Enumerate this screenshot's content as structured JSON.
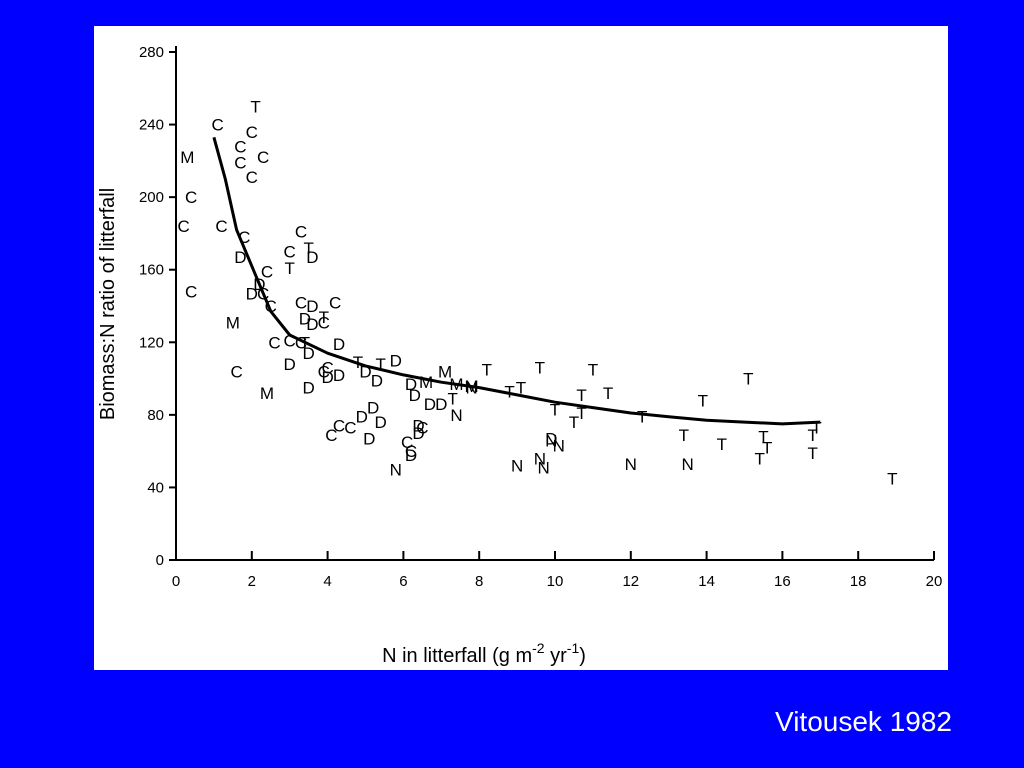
{
  "slide": {
    "background_color": "#0000FF",
    "citation": "Vitousek 1982"
  },
  "chart_data": {
    "type": "scatter",
    "xlabel": "N in litterfall (g m-2 yr-1)",
    "ylabel": "Biomass:N ratio of litterfall",
    "xlim": [
      0,
      20
    ],
    "ylim": [
      0,
      280
    ],
    "xticks": [
      0,
      2,
      4,
      6,
      8,
      10,
      12,
      14,
      16,
      18,
      20
    ],
    "yticks": [
      0,
      40,
      80,
      120,
      160,
      200,
      240,
      280
    ],
    "grid": false,
    "legend": "none",
    "series": [
      {
        "name": "C",
        "points": [
          [
            1.1,
            240
          ],
          [
            1.7,
            228
          ],
          [
            2.0,
            236
          ],
          [
            2.3,
            222
          ],
          [
            1.7,
            219
          ],
          [
            2.0,
            211
          ],
          [
            0.4,
            200
          ],
          [
            0.2,
            184
          ],
          [
            0.4,
            148
          ],
          [
            1.2,
            184
          ],
          [
            1.8,
            178
          ],
          [
            3.3,
            181
          ],
          [
            3.0,
            170
          ],
          [
            2.4,
            159
          ],
          [
            2.3,
            147
          ],
          [
            2.5,
            140
          ],
          [
            3.3,
            142
          ],
          [
            2.6,
            120
          ],
          [
            3.0,
            121
          ],
          [
            3.3,
            120
          ],
          [
            3.9,
            131
          ],
          [
            4.2,
            142
          ],
          [
            4.0,
            106
          ],
          [
            3.9,
            104
          ],
          [
            1.6,
            104
          ],
          [
            4.3,
            74
          ],
          [
            4.1,
            69
          ],
          [
            4.6,
            73
          ],
          [
            6.1,
            65
          ],
          [
            6.5,
            73
          ],
          [
            6.2,
            60
          ]
        ]
      },
      {
        "name": "M",
        "points": [
          [
            0.3,
            222
          ],
          [
            1.5,
            131
          ],
          [
            2.4,
            92
          ],
          [
            7.1,
            104
          ],
          [
            7.4,
            97
          ],
          [
            6.6,
            98
          ],
          [
            7.8,
            96
          ]
        ]
      },
      {
        "name": "D",
        "points": [
          [
            1.7,
            167
          ],
          [
            2.0,
            147
          ],
          [
            2.2,
            152
          ],
          [
            3.6,
            167
          ],
          [
            3.6,
            140
          ],
          [
            3.4,
            133
          ],
          [
            3.6,
            130
          ],
          [
            4.3,
            119
          ],
          [
            3.5,
            114
          ],
          [
            3.0,
            108
          ],
          [
            3.5,
            95
          ],
          [
            4.0,
            101
          ],
          [
            4.3,
            102
          ],
          [
            5.0,
            104
          ],
          [
            5.3,
            99
          ],
          [
            6.2,
            97
          ],
          [
            6.3,
            91
          ],
          [
            5.8,
            110
          ],
          [
            6.7,
            86
          ],
          [
            7.0,
            86
          ],
          [
            5.2,
            84
          ],
          [
            4.9,
            79
          ],
          [
            5.4,
            76
          ],
          [
            5.1,
            67
          ],
          [
            6.4,
            70
          ],
          [
            6.2,
            58
          ],
          [
            6.4,
            74
          ],
          [
            9.9,
            67
          ]
        ]
      },
      {
        "name": "T",
        "points": [
          [
            2.1,
            250
          ],
          [
            3.5,
            172
          ],
          [
            3.0,
            161
          ],
          [
            3.9,
            134
          ],
          [
            3.4,
            120
          ],
          [
            4.8,
            109
          ],
          [
            5.4,
            108
          ],
          [
            8.2,
            105
          ],
          [
            9.6,
            106
          ],
          [
            11.0,
            105
          ],
          [
            7.3,
            89
          ],
          [
            8.8,
            93
          ],
          [
            9.1,
            95
          ],
          [
            10.0,
            83
          ],
          [
            10.7,
            91
          ],
          [
            11.4,
            92
          ],
          [
            10.7,
            81
          ],
          [
            10.5,
            76
          ],
          [
            12.3,
            79
          ],
          [
            13.9,
            88
          ],
          [
            15.1,
            100
          ],
          [
            13.4,
            69
          ],
          [
            14.4,
            64
          ],
          [
            15.5,
            68
          ],
          [
            15.6,
            62
          ],
          [
            15.4,
            56
          ],
          [
            16.8,
            69
          ],
          [
            16.9,
            73
          ],
          [
            16.8,
            59
          ],
          [
            18.9,
            45
          ]
        ]
      },
      {
        "name": "N",
        "points": [
          [
            7.8,
            95
          ],
          [
            7.4,
            80
          ],
          [
            5.8,
            50
          ],
          [
            9.0,
            52
          ],
          [
            9.6,
            56
          ],
          [
            9.7,
            51
          ],
          [
            9.9,
            66
          ],
          [
            10.1,
            63
          ],
          [
            12.0,
            53
          ],
          [
            13.5,
            53
          ]
        ]
      }
    ],
    "fit_curve": [
      [
        1.0,
        233
      ],
      [
        1.3,
        210
      ],
      [
        1.6,
        182
      ],
      [
        2.0,
        162
      ],
      [
        2.5,
        137
      ],
      [
        3.0,
        124
      ],
      [
        4.0,
        114
      ],
      [
        5.0,
        107
      ],
      [
        6.0,
        102
      ],
      [
        7.0,
        98
      ],
      [
        8.0,
        95
      ],
      [
        9.0,
        91
      ],
      [
        10.0,
        87
      ],
      [
        11.0,
        84
      ],
      [
        12.0,
        81
      ],
      [
        13.0,
        79
      ],
      [
        14.0,
        77
      ],
      [
        15.0,
        76
      ],
      [
        16.0,
        75
      ],
      [
        17.0,
        76
      ]
    ]
  }
}
